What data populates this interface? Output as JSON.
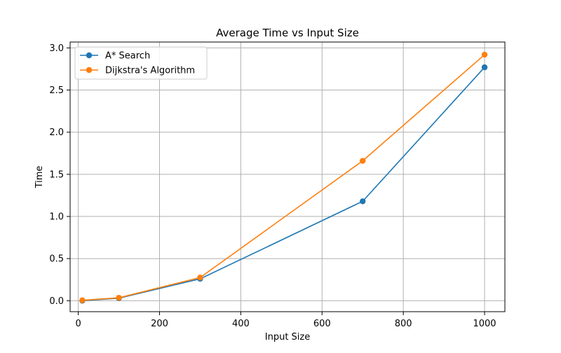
{
  "chart_data": {
    "type": "line",
    "title": "Average Time vs Input Size",
    "xlabel": "Input Size",
    "ylabel": "Time",
    "xlim": [
      -20,
      1050
    ],
    "ylim": [
      -0.13,
      3.07
    ],
    "x_ticks": [
      0,
      200,
      400,
      600,
      800,
      1000
    ],
    "y_ticks": [
      0.0,
      0.5,
      1.0,
      1.5,
      2.0,
      2.5,
      3.0
    ],
    "x_tick_labels": [
      "0",
      "200",
      "400",
      "600",
      "800",
      "1000"
    ],
    "y_tick_labels": [
      "0.0",
      "0.5",
      "1.0",
      "1.5",
      "2.0",
      "2.5",
      "3.0"
    ],
    "grid": true,
    "legend_position": "top-left",
    "x": [
      10,
      100,
      300,
      700,
      1000
    ],
    "series": [
      {
        "name": "A* Search",
        "color": "#1f77b4",
        "marker": "circle",
        "values": [
          0.0,
          0.03,
          0.26,
          1.18,
          2.77
        ]
      },
      {
        "name": "Dijkstra's Algorithm",
        "color": "#ff7f0e",
        "marker": "circle",
        "values": [
          0.005,
          0.035,
          0.275,
          1.66,
          2.92
        ]
      }
    ]
  }
}
